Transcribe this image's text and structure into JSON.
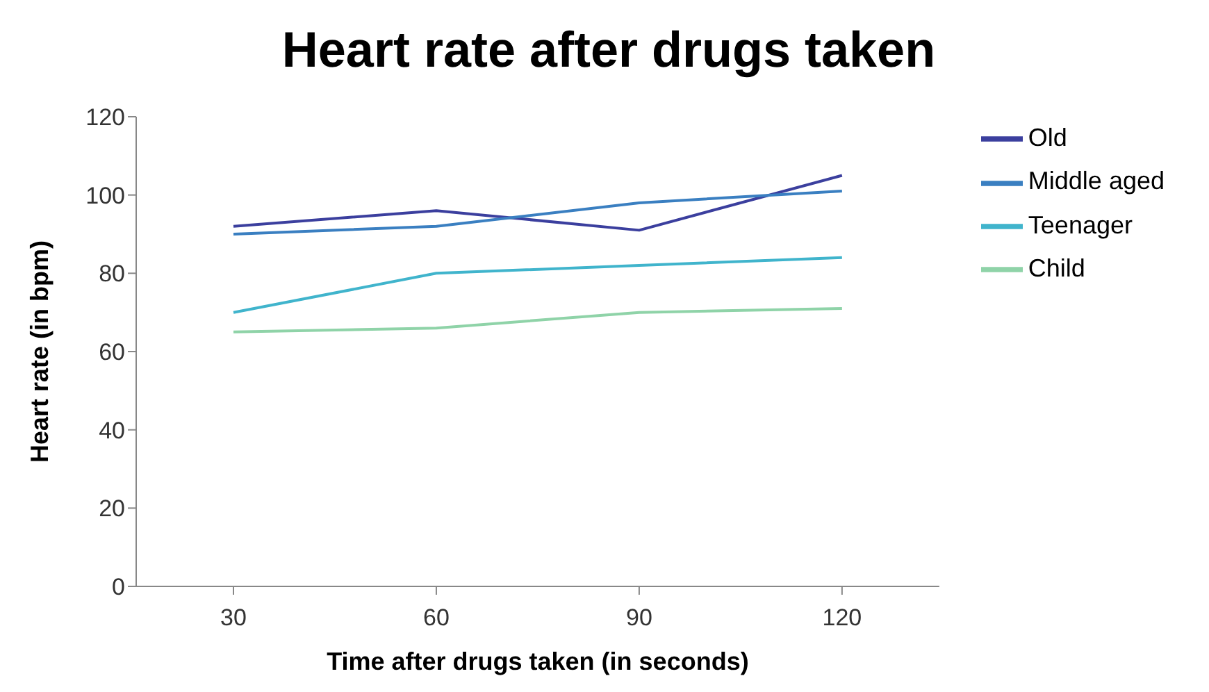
{
  "chart_data": {
    "type": "line",
    "title": "Heart rate after drugs taken",
    "xlabel": "Time after drugs taken (in seconds)",
    "ylabel": "Heart rate (in bpm)",
    "categories": [
      "30",
      "60",
      "90",
      "120"
    ],
    "series": [
      {
        "name": "Old",
        "color": "#3b3f9e",
        "values": [
          92,
          96,
          91,
          105
        ]
      },
      {
        "name": "Middle aged",
        "color": "#3a7fc1",
        "values": [
          90,
          92,
          98,
          101
        ]
      },
      {
        "name": "Teenager",
        "color": "#40b4cc",
        "values": [
          70,
          80,
          82,
          84
        ]
      },
      {
        "name": "Child",
        "color": "#8fd3a8",
        "values": [
          65,
          66,
          70,
          71
        ]
      }
    ],
    "ylim": [
      0,
      120
    ],
    "yticks": [
      0,
      20,
      40,
      60,
      80,
      100,
      120
    ],
    "grid": false,
    "legend": "right",
    "marker": "none"
  }
}
